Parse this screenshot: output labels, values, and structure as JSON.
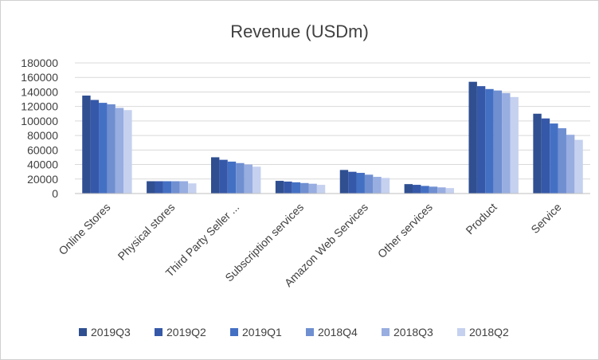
{
  "chart_data": {
    "type": "bar",
    "title": "Revenue (USDm)",
    "xlabel": "",
    "ylabel": "",
    "ylim": [
      0,
      180000
    ],
    "yticks": [
      0,
      20000,
      40000,
      60000,
      80000,
      100000,
      120000,
      140000,
      160000,
      180000
    ],
    "grid": true,
    "legend_position": "bottom",
    "categories": [
      "Online Stores",
      "Physical stores",
      "Third Party Seller ...",
      "Subscription services",
      "Amazon Web Services",
      "Other services",
      "Product",
      "Service"
    ],
    "series": [
      {
        "name": "2019Q3",
        "color": "#2f4f91",
        "values": [
          135000,
          17000,
          50000,
          17500,
          32500,
          13000,
          154000,
          110000
        ]
      },
      {
        "name": "2019Q2",
        "color": "#3658a8",
        "values": [
          129000,
          17000,
          46500,
          16500,
          30000,
          12000,
          148000,
          103500
        ]
      },
      {
        "name": "2019Q1",
        "color": "#4470c4",
        "values": [
          125000,
          17000,
          44000,
          15500,
          28500,
          10500,
          144000,
          96500
        ]
      },
      {
        "name": "2018Q4",
        "color": "#6f8fd1",
        "values": [
          123000,
          17000,
          42000,
          14500,
          26000,
          9500,
          142000,
          90000
        ]
      },
      {
        "name": "2018Q3",
        "color": "#98ade0",
        "values": [
          118000,
          17000,
          40000,
          13500,
          23000,
          8500,
          138500,
          81000
        ]
      },
      {
        "name": "2018Q2",
        "color": "#c5d1ef",
        "values": [
          115000,
          14000,
          37000,
          12000,
          21500,
          7500,
          133000,
          74000
        ]
      }
    ]
  }
}
